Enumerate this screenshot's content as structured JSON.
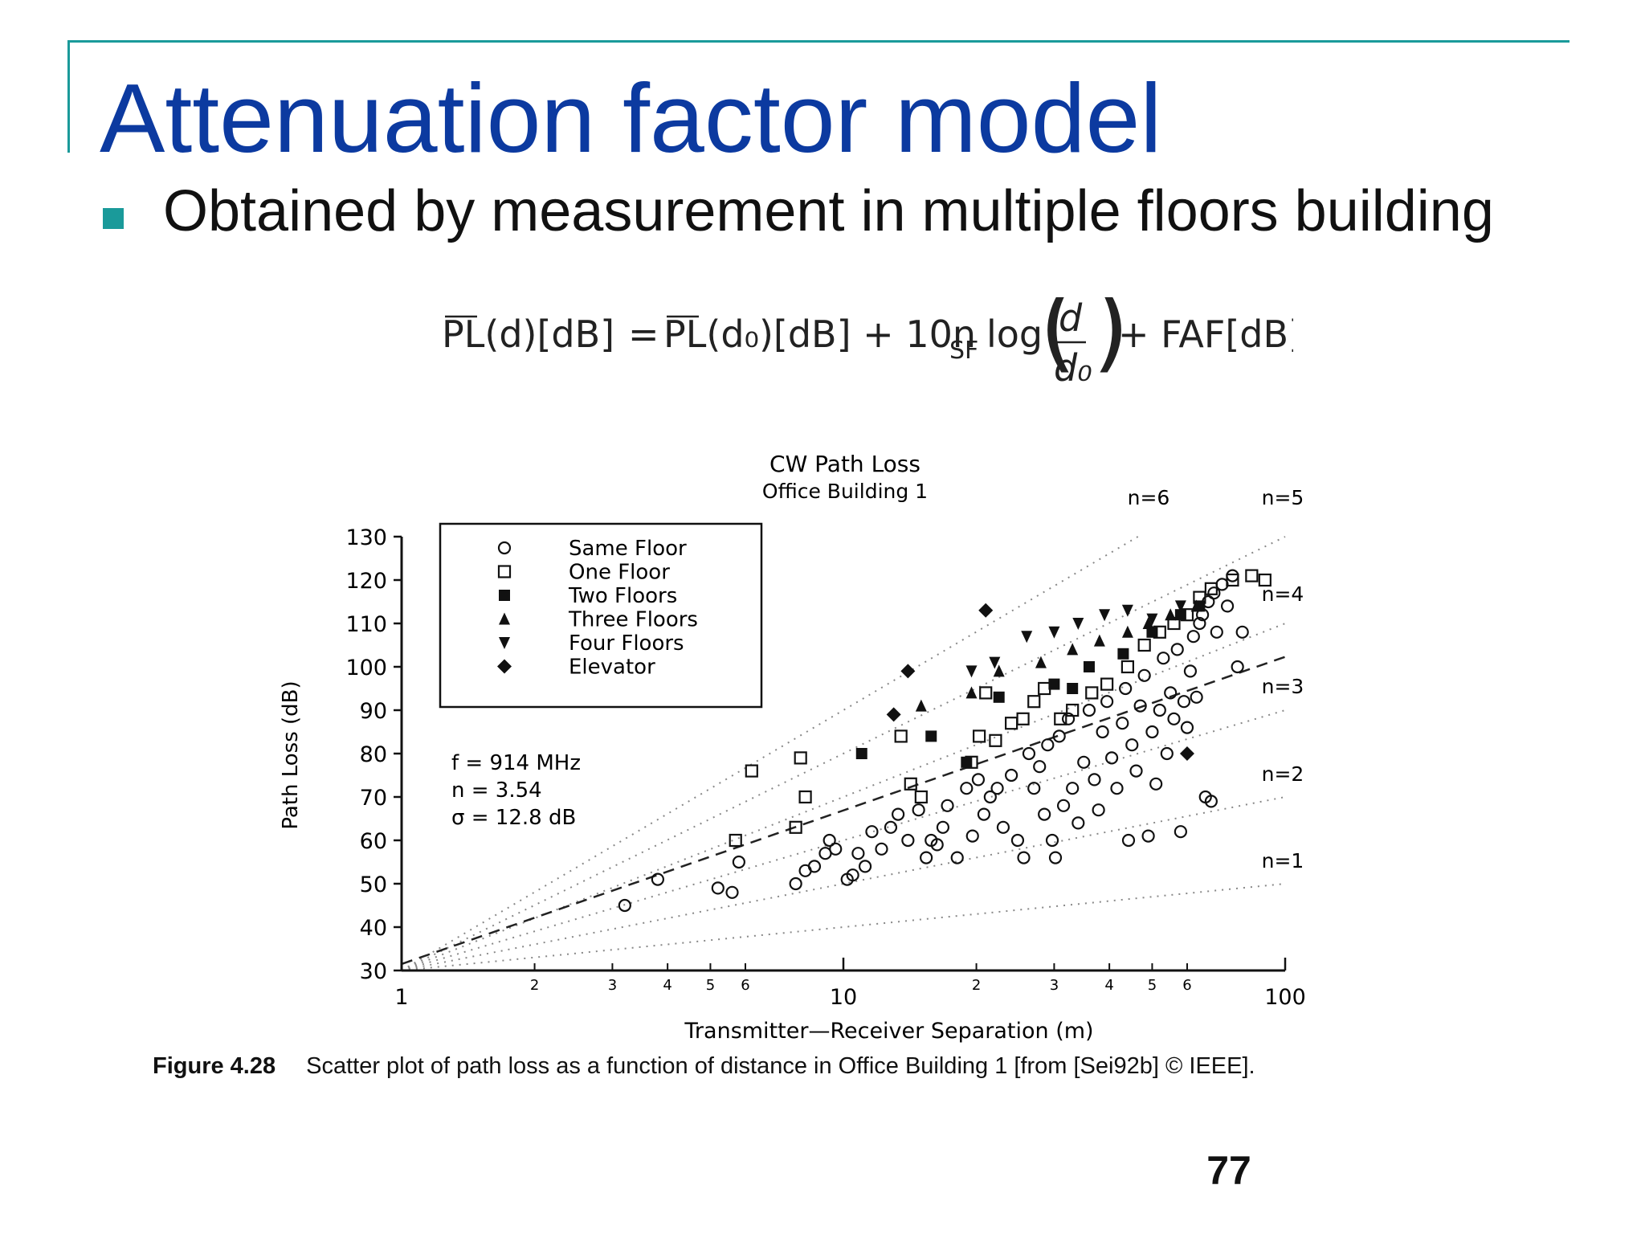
{
  "slide": {
    "title": "Attenuation factor model",
    "bullet": "Obtained by measurement in multiple floors building",
    "page_number": "77"
  },
  "formula": {
    "lhs": "PL(d)[dB]",
    "eq": "=",
    "term1": "PL(d₀)[dB] + 10n",
    "sub_sf": "SF",
    "log": "log",
    "frac_num": "d",
    "frac_den": "d₀",
    "term3": "+ FAF[dB]"
  },
  "caption": {
    "label": "Figure 4.28",
    "text": "Scatter plot of path loss as a function of distance in Office Building 1 [from [Sei92b] © IEEE]."
  },
  "chart_data": {
    "type": "scatter",
    "title": "CW Path Loss",
    "subtitle": "Office Building 1",
    "xlabel": "Transmitter—Receiver Separation (m)",
    "ylabel": "Path Loss (dB)",
    "xscale": "log",
    "xlim": [
      1,
      100
    ],
    "ylim": [
      30,
      130
    ],
    "y_ticks": [
      "30",
      "40",
      "50",
      "60",
      "70",
      "80",
      "90",
      "100",
      "110",
      "120",
      "130"
    ],
    "x_major_ticks": [
      {
        "v": 1,
        "label": "1"
      },
      {
        "v": 10,
        "label": "10"
      },
      {
        "v": 100,
        "label": "100"
      }
    ],
    "x_minor_ticks": [
      {
        "v": 2,
        "label": "2"
      },
      {
        "v": 3,
        "label": "3"
      },
      {
        "v": 4,
        "label": "4"
      },
      {
        "v": 5,
        "label": "5"
      },
      {
        "v": 6,
        "label": "6"
      },
      {
        "v": 20,
        "label": "2"
      },
      {
        "v": 30,
        "label": "3"
      },
      {
        "v": 40,
        "label": "4"
      },
      {
        "v": 50,
        "label": "5"
      },
      {
        "v": 60,
        "label": "6"
      }
    ],
    "legend_position": "top-left",
    "stats": [
      "f = 914 MHz",
      "n = 3.54",
      "σ = 12.8 dB"
    ],
    "fit": {
      "d0": 1,
      "pl0": 31.5,
      "n": 3.54
    },
    "reference_lines": [
      {
        "label": "n=1",
        "n": 1
      },
      {
        "label": "n=2",
        "n": 2
      },
      {
        "label": "n=3",
        "n": 3
      },
      {
        "label": "n=4",
        "n": 4
      },
      {
        "label": "n=5",
        "n": 5
      },
      {
        "label": "n=6",
        "n": 6
      }
    ],
    "series": [
      {
        "name": "Same Floor",
        "marker": "circle",
        "points": [
          [
            3.2,
            45
          ],
          [
            3.8,
            51
          ],
          [
            5.2,
            49
          ],
          [
            5.6,
            48
          ],
          [
            5.8,
            55
          ],
          [
            7.8,
            50
          ],
          [
            8.2,
            53
          ],
          [
            8.6,
            54
          ],
          [
            9.1,
            57
          ],
          [
            9.3,
            60
          ],
          [
            9.6,
            58
          ],
          [
            10.2,
            51
          ],
          [
            10.5,
            52
          ],
          [
            10.8,
            57
          ],
          [
            11.2,
            54
          ],
          [
            11.6,
            62
          ],
          [
            12.2,
            58
          ],
          [
            12.8,
            63
          ],
          [
            13.3,
            66
          ],
          [
            14,
            60
          ],
          [
            14.8,
            67
          ],
          [
            15.4,
            56
          ],
          [
            15.8,
            60
          ],
          [
            16.3,
            59
          ],
          [
            16.8,
            63
          ],
          [
            17.2,
            68
          ],
          [
            18.1,
            56
          ],
          [
            19,
            72
          ],
          [
            19.6,
            61
          ],
          [
            20.2,
            74
          ],
          [
            20.8,
            66
          ],
          [
            21.5,
            70
          ],
          [
            22.3,
            72
          ],
          [
            23,
            63
          ],
          [
            24,
            75
          ],
          [
            24.8,
            60
          ],
          [
            25.6,
            56
          ],
          [
            26.3,
            80
          ],
          [
            27,
            72
          ],
          [
            27.8,
            77
          ],
          [
            28.5,
            66
          ],
          [
            29,
            82
          ],
          [
            29.7,
            60
          ],
          [
            30.2,
            56
          ],
          [
            30.8,
            84
          ],
          [
            31.5,
            68
          ],
          [
            32.3,
            88
          ],
          [
            33,
            72
          ],
          [
            34,
            64
          ],
          [
            35,
            78
          ],
          [
            36,
            90
          ],
          [
            37,
            74
          ],
          [
            37.8,
            67
          ],
          [
            38.6,
            85
          ],
          [
            39.5,
            92
          ],
          [
            40.5,
            79
          ],
          [
            41.6,
            72
          ],
          [
            42.8,
            87
          ],
          [
            43.5,
            95
          ],
          [
            44.2,
            60
          ],
          [
            45,
            82
          ],
          [
            46,
            76
          ],
          [
            47,
            91
          ],
          [
            48,
            98
          ],
          [
            49,
            61
          ],
          [
            50,
            85
          ],
          [
            51,
            73
          ],
          [
            52,
            90
          ],
          [
            53,
            102
          ],
          [
            54,
            80
          ],
          [
            55,
            94
          ],
          [
            56,
            88
          ],
          [
            57,
            104
          ],
          [
            58,
            62
          ],
          [
            59,
            92
          ],
          [
            60,
            86
          ],
          [
            61,
            99
          ],
          [
            62,
            107
          ],
          [
            63,
            93
          ],
          [
            64,
            110
          ],
          [
            65,
            112
          ],
          [
            66,
            70
          ],
          [
            67,
            115
          ],
          [
            68,
            69
          ],
          [
            69,
            117
          ],
          [
            70,
            108
          ],
          [
            72,
            119
          ],
          [
            74,
            114
          ],
          [
            76,
            121
          ],
          [
            78,
            100
          ],
          [
            80,
            108
          ]
        ]
      },
      {
        "name": "One Floor",
        "marker": "square",
        "points": [
          [
            5.7,
            60
          ],
          [
            6.2,
            76
          ],
          [
            7.8,
            63
          ],
          [
            8,
            79
          ],
          [
            8.2,
            70
          ],
          [
            13.5,
            84
          ],
          [
            14.2,
            73
          ],
          [
            15,
            70
          ],
          [
            19.5,
            78
          ],
          [
            20.3,
            84
          ],
          [
            21,
            94
          ],
          [
            22.1,
            83
          ],
          [
            24,
            87
          ],
          [
            25.5,
            88
          ],
          [
            27,
            92
          ],
          [
            28.5,
            95
          ],
          [
            31,
            88
          ],
          [
            33,
            90
          ],
          [
            36.5,
            94
          ],
          [
            39.5,
            96
          ],
          [
            44,
            100
          ],
          [
            48,
            105
          ],
          [
            52,
            108
          ],
          [
            56,
            110
          ],
          [
            60,
            112
          ],
          [
            64,
            116
          ],
          [
            68,
            118
          ],
          [
            76,
            120
          ],
          [
            84,
            121
          ],
          [
            90,
            120
          ]
        ]
      },
      {
        "name": "Two Floors",
        "marker": "filled-square",
        "points": [
          [
            11,
            80
          ],
          [
            15.8,
            84
          ],
          [
            19,
            78
          ],
          [
            22.5,
            93
          ],
          [
            30,
            96
          ],
          [
            33,
            95
          ],
          [
            36,
            100
          ],
          [
            43,
            103
          ],
          [
            50,
            108
          ],
          [
            58,
            112
          ],
          [
            64,
            114
          ]
        ]
      },
      {
        "name": "Three Floors",
        "marker": "triangle",
        "points": [
          [
            15,
            91
          ],
          [
            19.5,
            94
          ],
          [
            22.5,
            99
          ],
          [
            28,
            101
          ],
          [
            33,
            104
          ],
          [
            38,
            106
          ],
          [
            44,
            108
          ],
          [
            49,
            110
          ],
          [
            55,
            112
          ],
          [
            63,
            114
          ]
        ]
      },
      {
        "name": "Four Floors",
        "marker": "inverted-triangle",
        "points": [
          [
            19.5,
            99
          ],
          [
            22,
            101
          ],
          [
            26,
            107
          ],
          [
            30,
            108
          ],
          [
            34,
            110
          ],
          [
            39,
            112
          ],
          [
            44,
            113
          ],
          [
            50,
            111
          ],
          [
            58,
            114
          ]
        ]
      },
      {
        "name": "Elevator",
        "marker": "diamond",
        "points": [
          [
            13,
            89
          ],
          [
            14,
            99
          ],
          [
            21,
            113
          ],
          [
            60,
            80
          ]
        ]
      }
    ]
  }
}
